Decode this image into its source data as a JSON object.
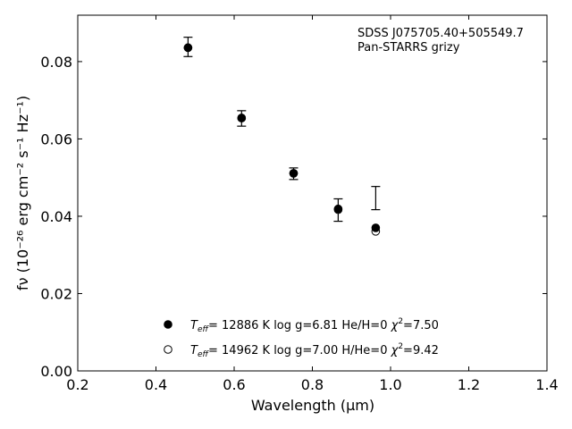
{
  "chart_data": {
    "type": "scatter",
    "title": "",
    "xlabel": "Wavelength (μm)",
    "ylabel": "fν (10⁻²⁶ erg cm⁻² s⁻¹ Hz⁻¹)",
    "xlim": [
      0.2,
      1.4
    ],
    "ylim": [
      0.0,
      0.092
    ],
    "xticks": [
      0.2,
      0.4,
      0.6,
      0.8,
      1.0,
      1.2,
      1.4
    ],
    "xtick_labels": [
      "0.2",
      "0.4",
      "0.6",
      "0.8",
      "1.0",
      "1.2",
      "1.4"
    ],
    "yticks": [
      0.0,
      0.02,
      0.04,
      0.06,
      0.08
    ],
    "ytick_labels": [
      "0.00",
      "0.02",
      "0.04",
      "0.06",
      "0.08"
    ],
    "grid": false,
    "annotations": [
      "SDSS J075705.40+505549.7",
      "Pan-STARRS grizy"
    ],
    "observed": {
      "x": [
        0.482,
        0.619,
        0.752,
        0.866,
        0.962
      ],
      "y": [
        0.0838,
        0.0653,
        0.051,
        0.0416,
        0.0447
      ],
      "yerr": [
        0.0025,
        0.002,
        0.0015,
        0.0029,
        0.003
      ]
    },
    "series": [
      {
        "name": "Teff= 12886 K  log g=6.81  He/H=0  χ²=7.50",
        "marker": "filled-circle",
        "x": [
          0.482,
          0.619,
          0.752,
          0.866,
          0.962
        ],
        "y": [
          0.0836,
          0.0654,
          0.0511,
          0.0419,
          0.037
        ]
      },
      {
        "name": "Teff= 14962 K  log g=7.00  H/He=0  χ²=9.42",
        "marker": "open-circle",
        "x": [
          0.482,
          0.619,
          0.752,
          0.866,
          0.962
        ],
        "y": [
          0.0836,
          0.0654,
          0.0511,
          0.0417,
          0.0361
        ]
      }
    ],
    "legend": {
      "placement": "lower-center",
      "entries": [
        {
          "teff": "12886 K",
          "logg": "log g=6.81",
          "comp": "He/H=0",
          "chi": "=7.50"
        },
        {
          "teff": "14962 K",
          "logg": "log g=7.00",
          "comp": "H/He=0",
          "chi": "=9.42"
        }
      ]
    }
  }
}
